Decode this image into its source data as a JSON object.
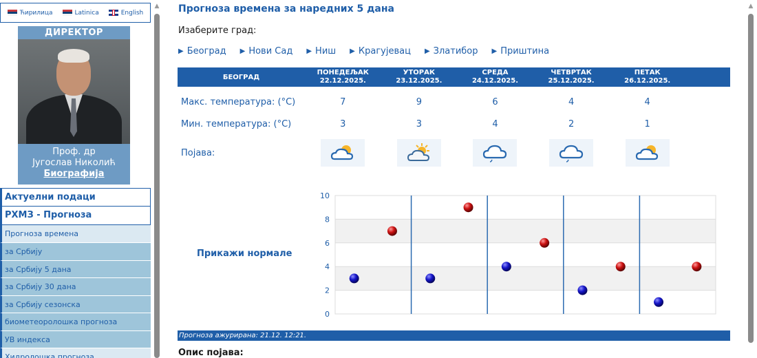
{
  "languages": [
    {
      "label": "Ћирилица",
      "flag": "rs"
    },
    {
      "label": "Latinica",
      "flag": "rs"
    },
    {
      "label": "English",
      "flag": "gb"
    }
  ],
  "director": {
    "title": "ДИРЕКТОР",
    "name_line1": "Проф. др",
    "name_line2": "Југослав Николић",
    "bio_link": "Биографија"
  },
  "menu": {
    "current_data": "Актуелни подаци",
    "forecast": "РХМЗ - Прогноза",
    "weather_forecast": "Прогноза времена",
    "items": [
      "за Србију",
      "за Србију 5 дана",
      "за Србију 30 дана",
      "за Србију сезонска",
      "биометеоролошка прогноза",
      "УВ индекса",
      "Хидролошка прогноза"
    ]
  },
  "main": {
    "title": "Прогноза времена за наредних 5 дана",
    "choose_city": "Изаберите град:",
    "cities": [
      "Београд",
      "Нови Сад",
      "Ниш",
      "Крагујевац",
      "Златибор",
      "Приштина"
    ],
    "table": {
      "city": "БЕОГРАД",
      "days": [
        {
          "name": "ПОНЕДЕЉАК",
          "date": "22.12.2025."
        },
        {
          "name": "УТОРАК",
          "date": "23.12.2025."
        },
        {
          "name": "СРЕДА",
          "date": "24.12.2025."
        },
        {
          "name": "ЧЕТВРТАК",
          "date": "25.12.2025."
        },
        {
          "name": "ПЕТАК",
          "date": "26.12.2025."
        }
      ],
      "max_label": "Макс. температура: (°C)",
      "min_label": "Мин. температура: (°C)",
      "phenomenon_label": "Појава:",
      "max_values": [
        "7",
        "9",
        "6",
        "4",
        "4"
      ],
      "min_values": [
        "3",
        "3",
        "4",
        "2",
        "1"
      ],
      "icons": [
        "partly-cloudy-icon",
        "sun-behind-clouds-icon",
        "cloud-drizzle-icon",
        "cloud-drizzle-icon",
        "partly-cloudy-icon"
      ]
    },
    "show_normals": "Прикажи нормале",
    "updated": "Прогноза ажурирана:  21.12. 12:21.",
    "description_title": "Опис појава:"
  },
  "chart_data": {
    "type": "scatter",
    "title": "",
    "xlabel": "",
    "ylabel": "",
    "ylim": [
      0,
      10
    ],
    "yticks": [
      0,
      2,
      4,
      6,
      8,
      10
    ],
    "categories": [
      "22.12.2025.",
      "23.12.2025.",
      "24.12.2025.",
      "25.12.2025.",
      "26.12.2025."
    ],
    "series": [
      {
        "values": [
          3,
          3,
          4,
          2,
          1
        ],
        "color": "#1515c8"
      },
      {
        "values": [
          7,
          9,
          6,
          4,
          4
        ],
        "color": "#cc1111"
      }
    ],
    "grid": true
  },
  "colors": {
    "brand_blue": "#1f5ea8",
    "menu_light": "#dbe9f2",
    "menu_mid": "#9ec5da"
  }
}
